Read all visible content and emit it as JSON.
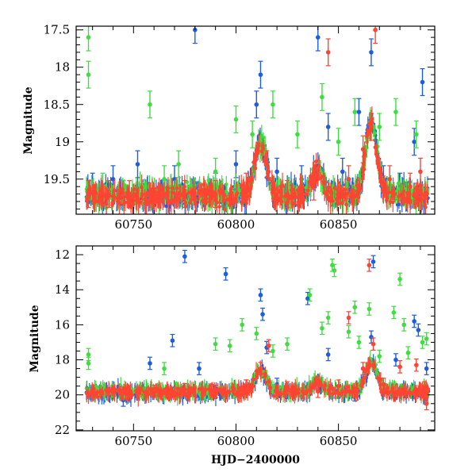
{
  "chart_data": [
    {
      "type": "scatter",
      "panel": "top",
      "ylabel": "Magnitude",
      "xlabel": "",
      "xlim": [
        60722,
        60897
      ],
      "ylim": [
        19.97,
        17.45
      ],
      "y_inverted": true,
      "x_ticks": [
        60750,
        60800,
        60850
      ],
      "x_tick_labels": [
        "60750",
        "60800",
        "60850"
      ],
      "y_ticks": [
        17.5,
        18,
        18.5,
        19,
        19.5
      ],
      "y_tick_labels": [
        "17.5",
        "18",
        "18.5",
        "19",
        "19.5"
      ],
      "grid": false,
      "legend": "none",
      "series": [
        {
          "color": "#3fdd3f",
          "note": "green band",
          "points": [
            [
              60728,
              17.6
            ],
            [
              60728,
              18.1
            ],
            [
              60735,
              19.6
            ],
            [
              60745,
              19.7
            ],
            [
              60758,
              18.5
            ],
            [
              60765,
              19.5
            ],
            [
              60772,
              19.3
            ],
            [
              60790,
              19.4
            ],
            [
              60800,
              18.7
            ],
            [
              60808,
              18.9
            ],
            [
              60818,
              18.5
            ],
            [
              60830,
              18.9
            ],
            [
              60842,
              18.4
            ],
            [
              60850,
              19.0
            ],
            [
              60858,
              18.6
            ],
            [
              60870,
              18.8
            ],
            [
              60878,
              18.6
            ],
            [
              60888,
              18.9
            ]
          ]
        },
        {
          "color": "#1f5ddf",
          "note": "blue band",
          "points": [
            [
              60730,
              19.6
            ],
            [
              60740,
              19.5
            ],
            [
              60752,
              19.3
            ],
            [
              60770,
              19.5
            ],
            [
              60780,
              17.5
            ],
            [
              60790,
              19.6
            ],
            [
              60800,
              19.3
            ],
            [
              60810,
              18.5
            ],
            [
              60812,
              18.1
            ],
            [
              60820,
              19.4
            ],
            [
              60832,
              19.5
            ],
            [
              60840,
              17.6
            ],
            [
              60845,
              18.8
            ],
            [
              60852,
              19.4
            ],
            [
              60860,
              18.6
            ],
            [
              60866,
              17.8
            ],
            [
              60872,
              19.5
            ],
            [
              60880,
              19.6
            ],
            [
              60887,
              19.0
            ],
            [
              60891,
              18.2
            ]
          ]
        },
        {
          "color": "#ff4433",
          "note": "red band",
          "points": [
            [
              60728,
              19.7
            ],
            [
              60738,
              19.7
            ],
            [
              60748,
              19.7
            ],
            [
              60760,
              19.8
            ],
            [
              60775,
              19.7
            ],
            [
              60790,
              19.7
            ],
            [
              60805,
              19.6
            ],
            [
              60815,
              19.3
            ],
            [
              60825,
              19.7
            ],
            [
              60838,
              19.6
            ],
            [
              60845,
              17.8
            ],
            [
              60855,
              19.5
            ],
            [
              60862,
              19.1
            ],
            [
              60866,
              18.8
            ],
            [
              60868,
              17.5
            ],
            [
              60875,
              19.5
            ],
            [
              60885,
              19.6
            ],
            [
              60890,
              19.4
            ]
          ]
        }
      ]
    },
    {
      "type": "scatter",
      "panel": "bottom",
      "ylabel": "Magnitude",
      "xlabel": "HJD−2400000",
      "xlim": [
        60722,
        60897
      ],
      "ylim": [
        22.05,
        11.5
      ],
      "y_inverted": true,
      "x_ticks": [
        60750,
        60800,
        60850
      ],
      "x_tick_labels": [
        "60750",
        "60800",
        "60850"
      ],
      "y_ticks": [
        12,
        14,
        16,
        18,
        20,
        22
      ],
      "y_tick_labels": [
        "12",
        "14",
        "16",
        "18",
        "20",
        "22"
      ],
      "grid": false,
      "legend": "none",
      "series": [
        {
          "color": "#3fdd3f",
          "note": "green band",
          "points": [
            [
              60728,
              17.7
            ],
            [
              60728,
              18.2
            ],
            [
              60765,
              18.5
            ],
            [
              60790,
              17.1
            ],
            [
              60797,
              17.2
            ],
            [
              60803,
              16.0
            ],
            [
              60810,
              16.5
            ],
            [
              60818,
              17.5
            ],
            [
              60825,
              17.1
            ],
            [
              60836,
              14.3
            ],
            [
              60842,
              16.2
            ],
            [
              60845,
              15.6
            ],
            [
              60847,
              12.6
            ],
            [
              60848,
              12.9
            ],
            [
              60855,
              16.4
            ],
            [
              60858,
              15.0
            ],
            [
              60860,
              17.0
            ],
            [
              60865,
              15.1
            ],
            [
              60870,
              17.8
            ],
            [
              60877,
              15.3
            ],
            [
              60880,
              13.4
            ],
            [
              60882,
              16.0
            ],
            [
              60884,
              17.6
            ],
            [
              60891,
              17.0
            ],
            [
              60893,
              16.8
            ]
          ]
        },
        {
          "color": "#1f5ddf",
          "note": "blue band",
          "points": [
            [
              60730,
              19.9
            ],
            [
              60745,
              20.3
            ],
            [
              60758,
              18.2
            ],
            [
              60769,
              16.9
            ],
            [
              60775,
              12.1
            ],
            [
              60782,
              18.5
            ],
            [
              60795,
              13.1
            ],
            [
              60805,
              19.5
            ],
            [
              60812,
              14.3
            ],
            [
              60813,
              15.4
            ],
            [
              60815,
              17.3
            ],
            [
              60820,
              19.4
            ],
            [
              60835,
              14.5
            ],
            [
              60845,
              17.7
            ],
            [
              60858,
              20.0
            ],
            [
              60866,
              16.7
            ],
            [
              60867,
              12.4
            ],
            [
              60878,
              18.0
            ],
            [
              60887,
              15.8
            ],
            [
              60889,
              16.3
            ],
            [
              60893,
              18.5
            ]
          ]
        },
        {
          "color": "#ff4433",
          "note": "red band",
          "points": [
            [
              60730,
              19.8
            ],
            [
              60745,
              19.9
            ],
            [
              60760,
              19.8
            ],
            [
              60775,
              19.7
            ],
            [
              60790,
              19.8
            ],
            [
              60805,
              19.5
            ],
            [
              60812,
              18.5
            ],
            [
              60816,
              17.2
            ],
            [
              60825,
              19.6
            ],
            [
              60840,
              19.8
            ],
            [
              60850,
              19.5
            ],
            [
              60855,
              15.6
            ],
            [
              60862,
              18.5
            ],
            [
              60865,
              12.6
            ],
            [
              60867,
              17.1
            ],
            [
              60872,
              19.4
            ],
            [
              60880,
              18.4
            ],
            [
              60888,
              18.3
            ],
            [
              60892,
              19.6
            ],
            [
              60893,
              20.5
            ]
          ]
        }
      ]
    }
  ]
}
